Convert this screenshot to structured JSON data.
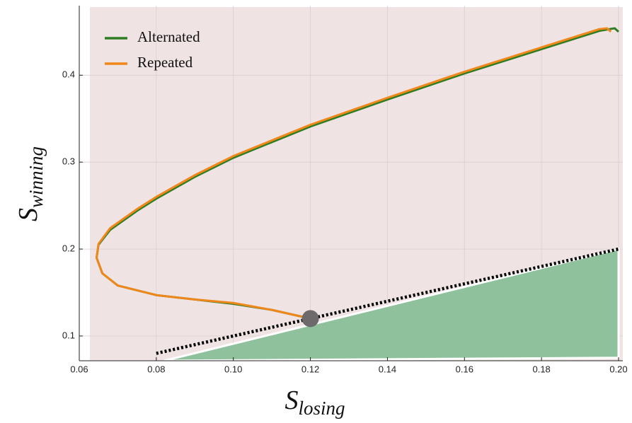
{
  "chart_data": {
    "type": "line",
    "x_label": "S",
    "x_label_sub": "losing",
    "y_label": "S",
    "y_label_sub": "winning",
    "xlim": [
      0.06,
      0.2
    ],
    "ylim": [
      0.0715,
      0.48
    ],
    "xticks": [
      {
        "value": 0.06,
        "label": "0.06"
      },
      {
        "value": 0.08,
        "label": "0.08"
      },
      {
        "value": 0.1,
        "label": "0.10"
      },
      {
        "value": 0.12,
        "label": "0.12"
      },
      {
        "value": 0.14,
        "label": "0.14"
      },
      {
        "value": 0.16,
        "label": "0.16"
      },
      {
        "value": 0.18,
        "label": "0.18"
      },
      {
        "value": 0.2,
        "label": "0.20"
      }
    ],
    "yticks": [
      0.1,
      0.2,
      0.3,
      0.4
    ],
    "grid": true,
    "legend": "top-left",
    "series": [
      {
        "name": "Alternated",
        "color": "#2e7d22",
        "x": [
          0.12,
          0.11,
          0.1,
          0.09,
          0.08,
          0.07,
          0.066,
          0.0645,
          0.065,
          0.068,
          0.075,
          0.08,
          0.09,
          0.1,
          0.12,
          0.14,
          0.16,
          0.18,
          0.195,
          0.199,
          0.2
        ],
        "values": [
          0.12,
          0.13,
          0.137,
          0.142,
          0.147,
          0.158,
          0.172,
          0.19,
          0.205,
          0.222,
          0.244,
          0.258,
          0.283,
          0.305,
          0.341,
          0.372,
          0.402,
          0.43,
          0.451,
          0.454,
          0.45
        ]
      },
      {
        "name": "Repeated",
        "color": "#f0871a",
        "x": [
          0.12,
          0.11,
          0.1,
          0.09,
          0.08,
          0.07,
          0.066,
          0.0645,
          0.065,
          0.068,
          0.075,
          0.08,
          0.09,
          0.1,
          0.12,
          0.14,
          0.16,
          0.18,
          0.195,
          0.197,
          0.198
        ],
        "values": [
          0.12,
          0.13,
          0.138,
          0.142,
          0.147,
          0.158,
          0.172,
          0.19,
          0.206,
          0.224,
          0.246,
          0.26,
          0.285,
          0.307,
          0.343,
          0.374,
          0.404,
          0.432,
          0.453,
          0.454,
          0.45
        ]
      }
    ],
    "reference_line": {
      "x": [
        0.08,
        0.2
      ],
      "y": [
        0.08,
        0.2
      ]
    },
    "region": {
      "color": "#8fc29c",
      "x": [
        0.082,
        0.2,
        0.2
      ],
      "y": [
        0.0715,
        0.2,
        0.075
      ]
    },
    "marker": {
      "x": 0.12,
      "y": 0.12,
      "color": "#6e6a6b"
    }
  }
}
